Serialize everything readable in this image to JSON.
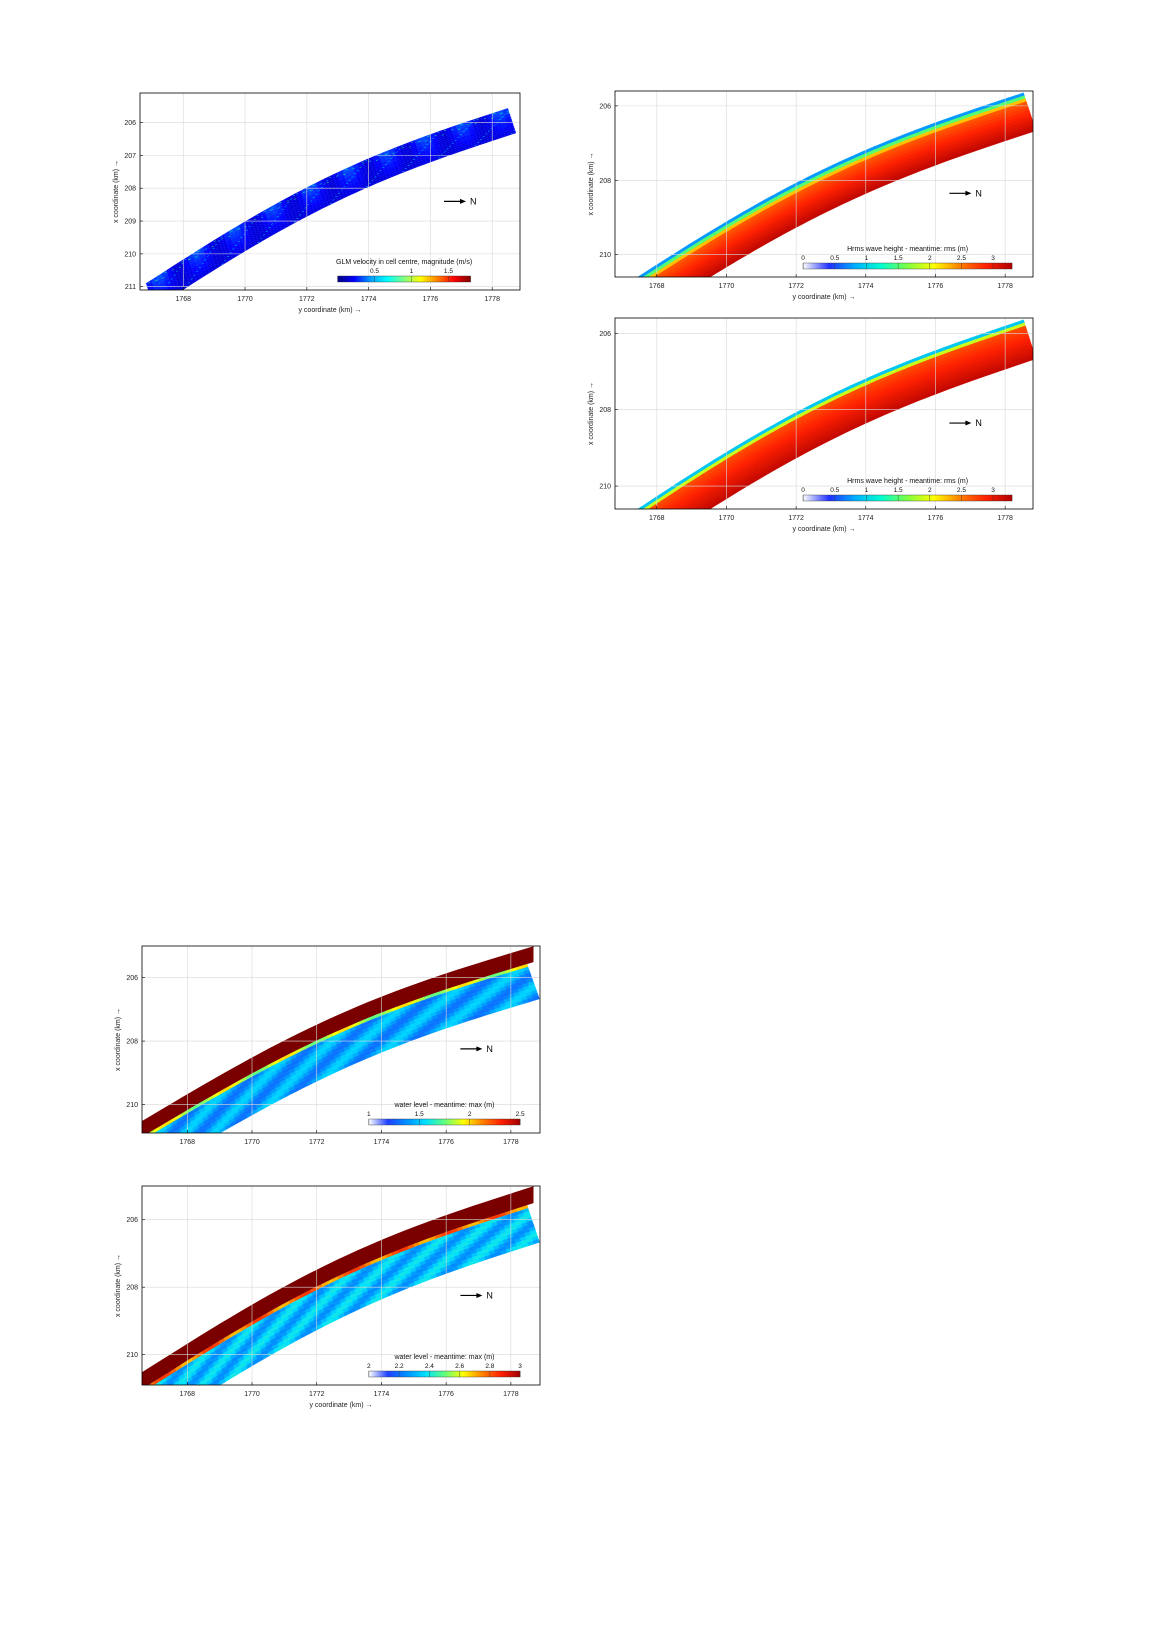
{
  "panels": [
    {
      "id": "velocity",
      "title": "",
      "north_label": "N",
      "chart_data": {
        "type": "heatmap",
        "title": "",
        "xlabel": "y coordinate (km) →",
        "ylabel": "x coordinate (km) →",
        "xlim": [
          1766.6,
          1778.9
        ],
        "ylim": [
          211.1,
          205.1
        ],
        "x_ticks": [
          1768,
          1770,
          1772,
          1774,
          1776,
          1778
        ],
        "y_ticks": [
          206,
          207,
          208,
          209,
          210,
          211
        ],
        "grid": true,
        "colorbar": {
          "label": "GLM velocity in cell centre, magnitude (m/s)",
          "range": [
            0,
            1.8
          ],
          "ticks": [
            0.5,
            1,
            1.5
          ],
          "colors": [
            "#00007f",
            "#0000ff",
            "#00a0ff",
            "#00ffff",
            "#80ff80",
            "#ffff00",
            "#ff8000",
            "#ff0000",
            "#800000"
          ]
        },
        "domain_outline": [
          {
            "y": 1766.8,
            "x": 210.8
          },
          {
            "y": 1768.0,
            "x": 210.3
          },
          {
            "y": 1770.0,
            "x": 209.4
          },
          {
            "y": 1772.0,
            "x": 208.4
          },
          {
            "y": 1774.0,
            "x": 207.5
          },
          {
            "y": 1776.0,
            "x": 206.6
          },
          {
            "y": 1777.5,
            "x": 205.8
          },
          {
            "y": 1778.7,
            "x": 205.4
          },
          {
            "y": 1778.9,
            "x": 206.1
          },
          {
            "y": 1776.0,
            "x": 207.3
          },
          {
            "y": 1774.0,
            "x": 208.3
          },
          {
            "y": 1772.0,
            "x": 209.3
          },
          {
            "y": 1770.0,
            "x": 210.2
          },
          {
            "y": 1768.0,
            "x": 210.9
          },
          {
            "y": 1767.2,
            "x": 211.1
          }
        ],
        "field_description": "velocity vectors along coastline, mostly 0-0.5 m/s with higher values near shore"
      }
    },
    {
      "id": "hrms1",
      "title": "",
      "north_label": "N",
      "chart_data": {
        "type": "heatmap",
        "title": "",
        "xlabel": "y coordinate (km) →",
        "ylabel": "x coordinate (km) →",
        "xlim": [
          1766.8,
          1778.8
        ],
        "ylim": [
          210.6,
          205.6
        ],
        "x_ticks": [
          1768,
          1770,
          1772,
          1774,
          1776,
          1778
        ],
        "y_ticks": [
          206,
          208,
          210
        ],
        "grid": true,
        "colorbar": {
          "label": "Hrms wave height - meantime: rms (m)",
          "range": [
            0,
            3.3
          ],
          "ticks": [
            0,
            0.5,
            1,
            1.5,
            2,
            2.5,
            3
          ],
          "colors": [
            "#ffffff",
            "#2030ff",
            "#00b0ff",
            "#00ffd0",
            "#80ff40",
            "#ffff00",
            "#ff8000",
            "#ff2000",
            "#b00000"
          ]
        },
        "field_description": "Hrms increases from ~0 at shoreline to ~3 m offshore"
      }
    },
    {
      "id": "hrms2",
      "title": "",
      "north_label": "N",
      "chart_data": {
        "type": "heatmap",
        "title": "",
        "xlabel": "y coordinate (km) →",
        "ylabel": "x coordinate (km) →",
        "xlim": [
          1766.8,
          1778.8
        ],
        "ylim": [
          210.6,
          205.6
        ],
        "x_ticks": [
          1768,
          1770,
          1772,
          1774,
          1776,
          1778
        ],
        "y_ticks": [
          206,
          208,
          210
        ],
        "grid": true,
        "colorbar": {
          "label": "Hrms wave height - meantime: rms (m)",
          "range": [
            0,
            3.3
          ],
          "ticks": [
            0,
            0.5,
            1,
            1.5,
            2,
            2.5,
            3
          ],
          "colors": [
            "#ffffff",
            "#2030ff",
            "#00b0ff",
            "#00ffd0",
            "#80ff40",
            "#ffff00",
            "#ff8000",
            "#ff2000",
            "#b00000"
          ]
        },
        "field_description": "Hrms increases from ~0 at shoreline to ~3 m offshore"
      }
    },
    {
      "id": "wl1",
      "title": "",
      "north_label": "N",
      "chart_data": {
        "type": "heatmap",
        "title": "",
        "xlabel": "",
        "ylabel": "x coordinate (km) →",
        "xlim": [
          1766.6,
          1778.9
        ],
        "ylim": [
          210.9,
          205.0
        ],
        "x_ticks": [
          1768,
          1770,
          1772,
          1774,
          1776,
          1778
        ],
        "y_ticks": [
          206,
          208,
          210
        ],
        "grid": true,
        "colorbar": {
          "label": "water level - meantime: max (m)",
          "range": [
            1,
            2.5
          ],
          "ticks": [
            1,
            1.5,
            2,
            2.5
          ],
          "colors": [
            "#ffffff",
            "#2040ff",
            "#0090ff",
            "#00e0ff",
            "#60ff80",
            "#ffff00",
            "#ff8000",
            "#ff2000",
            "#a00000"
          ]
        },
        "field_description": "max water level ~1.5 m over sea area, >2.5 m in dry/land strip"
      }
    },
    {
      "id": "wl2",
      "title": "",
      "north_label": "N",
      "chart_data": {
        "type": "heatmap",
        "title": "",
        "xlabel": "y coordinate (km) →",
        "ylabel": "x coordinate (km) →",
        "xlim": [
          1766.6,
          1778.9
        ],
        "ylim": [
          210.9,
          205.0
        ],
        "x_ticks": [
          1768,
          1770,
          1772,
          1774,
          1776,
          1778
        ],
        "y_ticks": [
          206,
          208,
          210
        ],
        "grid": true,
        "colorbar": {
          "label": "water level - meantime: max (m)",
          "range": [
            2,
            3
          ],
          "ticks": [
            2,
            2.2,
            2.4,
            2.6,
            2.8,
            3
          ],
          "colors": [
            "#ffffff",
            "#2040ff",
            "#0090ff",
            "#00e0ff",
            "#60ff80",
            "#ffff00",
            "#ff8000",
            "#ff2000",
            "#a00000"
          ]
        },
        "field_description": "max water level ~2.3 m over sea area, >3 m in dry/land strip"
      }
    }
  ]
}
